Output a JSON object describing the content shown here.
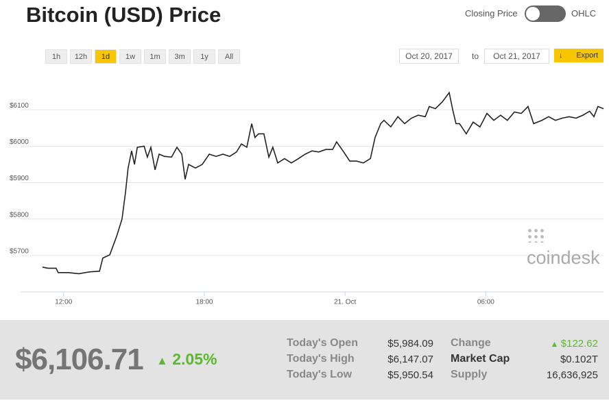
{
  "header": {
    "title": "Bitcoin (USD) Price",
    "toggle_left": "Closing Price",
    "toggle_right": "OHLC"
  },
  "ranges": [
    "1h",
    "12h",
    "1d",
    "1w",
    "1m",
    "3m",
    "1y",
    "All"
  ],
  "active_range": "1d",
  "date_from": "Oct 20, 2017",
  "to": "to",
  "date_to": "Oct 21, 2017",
  "export": "Export",
  "watermark": "coindesk",
  "chart_data": {
    "type": "line",
    "color": "#222",
    "grid": true,
    "x": [
      11.1,
      11.33,
      11.68,
      11.77,
      12.21,
      12.65,
      13.09,
      13.53,
      13.67,
      13.97,
      14.26,
      14.49,
      14.64,
      14.75,
      14.9,
      15.02,
      15.14,
      15.43,
      15.57,
      15.72,
      15.9,
      16.07,
      16.3,
      16.6,
      16.83,
      17.04,
      17.18,
      17.33,
      17.62,
      17.91,
      18.21,
      18.5,
      18.79,
      19.08,
      19.37,
      19.58,
      19.81,
      20.02,
      20.16,
      20.31,
      20.54,
      20.75,
      20.92,
      21.13,
      21.42,
      21.71,
      22.01,
      22.3,
      22.59,
      22.88,
      23.18,
      23.47,
      23.64,
      23.91,
      24.2,
      24.49,
      24.78,
      25.08,
      25.28,
      25.52,
      25.66,
      25.95,
      26.25,
      26.54,
      26.83,
      27.12,
      27.42,
      27.59,
      27.85,
      28.15,
      28.44,
      28.59,
      28.73,
      28.88,
      29.17,
      29.46,
      29.75,
      30.05,
      30.34,
      30.63,
      30.92,
      31.22,
      31.51,
      31.8,
      32.04,
      32.39,
      32.68,
      32.97,
      33.26,
      33.56,
      33.85,
      34.14,
      34.43,
      34.61,
      34.78,
      35.02
    ],
    "values": [
      5668,
      5665,
      5665,
      5653,
      5653,
      5650,
      5655,
      5657,
      5693,
      5702,
      5753,
      5800,
      5875,
      5940,
      5987,
      5950,
      5997,
      6000,
      5970,
      5997,
      5935,
      5978,
      5972,
      5970,
      5997,
      5978,
      5909,
      5950,
      5940,
      5950,
      5978,
      5972,
      5978,
      5972,
      5984,
      6006,
      5997,
      6062,
      6024,
      6034,
      6034,
      5970,
      5997,
      5954,
      5966,
      5954,
      5966,
      5978,
      5987,
      5984,
      5991,
      5991,
      6012,
      5987,
      5959,
      5959,
      5954,
      5966,
      6024,
      6062,
      6071,
      6053,
      6081,
      6062,
      6077,
      6085,
      6081,
      6109,
      6103,
      6122,
      6147,
      6100,
      6062,
      6062,
      6034,
      6066,
      6053,
      6090,
      6071,
      6085,
      6071,
      6094,
      6090,
      6109,
      6062,
      6071,
      6081,
      6071,
      6077,
      6081,
      6077,
      6085,
      6096,
      6081,
      6109,
      6103
    ],
    "xlim": [
      11.1,
      35.02
    ],
    "ylim": [
      5600,
      6200
    ],
    "xticks": [
      {
        "value": 12,
        "label": "12:00"
      },
      {
        "value": 18,
        "label": "18:00"
      },
      {
        "value": 24,
        "label": "21. Oct"
      },
      {
        "value": 30,
        "label": "06:00"
      }
    ],
    "yticks": [
      {
        "value": 5700,
        "label": "$5700"
      },
      {
        "value": 5800,
        "label": "$5800"
      },
      {
        "value": 5900,
        "label": "$5900"
      },
      {
        "value": 6000,
        "label": "$6000"
      },
      {
        "value": 6100,
        "label": "$6100"
      }
    ]
  },
  "summary": {
    "price": "$6,106.71",
    "change_pct": "2.05%",
    "left": [
      [
        "Today's Open",
        "$5,984.09"
      ],
      [
        "Today's High",
        "$6,147.07"
      ],
      [
        "Today's Low",
        "$5,950.54"
      ]
    ],
    "right": [
      [
        "Change",
        "$122.62"
      ],
      [
        "Market Cap",
        "$0.102T"
      ],
      [
        "Supply",
        "16,636,925"
      ]
    ]
  }
}
